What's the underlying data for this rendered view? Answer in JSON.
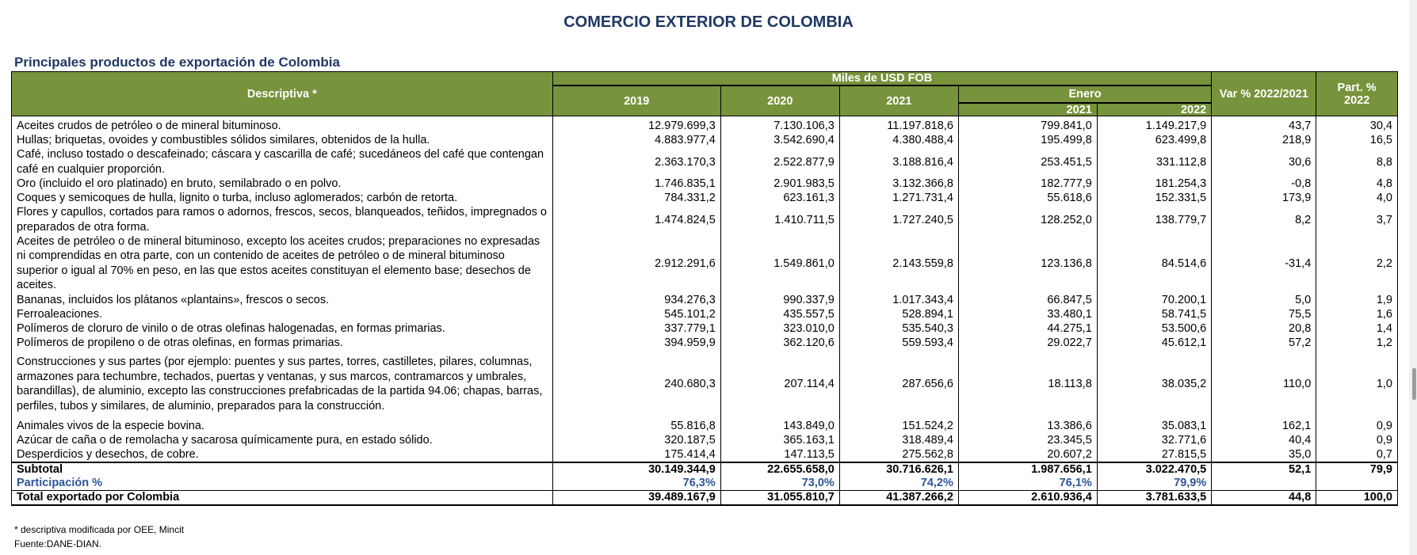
{
  "title": "COMERCIO EXTERIOR DE COLOMBIA",
  "subtitle": "Principales productos de exportación de Colombia",
  "table": {
    "headers": {
      "descriptiva": "Descriptiva *",
      "miles": "Miles de USD FOB",
      "y2019": "2019",
      "y2020": "2020",
      "y2021": "2021",
      "enero": "Enero",
      "e2021": "2021",
      "e2022": "2022",
      "var": "Var % 2022/2021",
      "part_line1": "Part. %",
      "part_line2": "2022"
    },
    "rows": [
      {
        "desc": "Aceites crudos de petróleo o de mineral bituminoso.",
        "y2019": "12.979.699,3",
        "y2020": "7.130.106,3",
        "y2021": "11.197.818,6",
        "e2021": "799.841,0",
        "e2022": "1.149.217,9",
        "var": "43,7",
        "part": "30,4"
      },
      {
        "desc": "Hullas; briquetas, ovoides y combustibles sólidos similares, obtenidos de la hulla.",
        "y2019": "4.883.977,4",
        "y2020": "3.542.690,4",
        "y2021": "4.380.488,4",
        "e2021": "195.499,8",
        "e2022": "623.499,8",
        "var": "218,9",
        "part": "16,5"
      },
      {
        "desc": "Café, incluso tostado o descafeinado; cáscara y cascarilla de café; sucedáneos del café que contengan café en cualquier proporción.",
        "y2019": "2.363.170,3",
        "y2020": "2.522.877,9",
        "y2021": "3.188.816,4",
        "e2021": "253.451,5",
        "e2022": "331.112,8",
        "var": "30,6",
        "part": "8,8"
      },
      {
        "desc": "Oro (incluido el oro platinado) en bruto, semilabrado o en polvo.",
        "y2019": "1.746.835,1",
        "y2020": "2.901.983,5",
        "y2021": "3.132.366,8",
        "e2021": "182.777,9",
        "e2022": "181.254,3",
        "var": "-0,8",
        "part": "4,8"
      },
      {
        "desc": "Coques y semicoques de hulla, lignito o turba, incluso aglomerados; carbón de retorta.",
        "y2019": "784.331,2",
        "y2020": "623.161,3",
        "y2021": "1.271.731,4",
        "e2021": "55.618,6",
        "e2022": "152.331,5",
        "var": "173,9",
        "part": "4,0"
      },
      {
        "desc": "Flores y capullos, cortados para ramos o adornos, frescos, secos, blanqueados, teñidos, impregnados o preparados de otra forma.",
        "y2019": "1.474.824,5",
        "y2020": "1.410.711,5",
        "y2021": "1.727.240,5",
        "e2021": "128.252,0",
        "e2022": "138.779,7",
        "var": "8,2",
        "part": "3,7"
      },
      {
        "desc": "Aceites de petróleo o de mineral bituminoso, excepto los aceites crudos; preparaciones no expresadas ni comprendidas en otra parte, con un contenido de aceites de petróleo o de mineral bituminoso superior o igual al 70% en peso, en las que estos aceites constituyan el elemento base; desechos de aceites.",
        "y2019": "2.912.291,6",
        "y2020": "1.549.861,0",
        "y2021": "2.143.559,8",
        "e2021": "123.136,8",
        "e2022": "84.514,6",
        "var": "-31,4",
        "part": "2,2"
      },
      {
        "desc": "Bananas, incluidos los plátanos «plantains», frescos o secos.",
        "y2019": "934.276,3",
        "y2020": "990.337,9",
        "y2021": "1.017.343,4",
        "e2021": "66.847,5",
        "e2022": "70.200,1",
        "var": "5,0",
        "part": "1,9"
      },
      {
        "desc": "Ferroaleaciones.",
        "y2019": "545.101,2",
        "y2020": "435.557,5",
        "y2021": "528.894,1",
        "e2021": "33.480,1",
        "e2022": "58.741,5",
        "var": "75,5",
        "part": "1,6"
      },
      {
        "desc": "Polímeros de cloruro de vinilo o de otras olefinas halogenadas, en formas primarias.",
        "y2019": "337.779,1",
        "y2020": "323.010,0",
        "y2021": "535.540,3",
        "e2021": "44.275,1",
        "e2022": "53.500,6",
        "var": "20,8",
        "part": "1,4"
      },
      {
        "desc": "Polímeros de propileno o de otras olefinas, en formas primarias.",
        "y2019": "394.959,9",
        "y2020": "362.120,6",
        "y2021": "559.593,4",
        "e2021": "29.022,7",
        "e2022": "45.612,1",
        "var": "57,2",
        "part": "1,2"
      },
      {
        "desc": "Construcciones y sus partes (por ejemplo: puentes y sus partes, torres, castilletes, pilares, columnas, armazones para techumbre, techados, puertas y ventanas, y sus marcos, contramarcos y umbrales, barandillas), de aluminio, excepto las construcciones prefabricadas de la partida 94.06; chapas, barras, perfiles, tubos y similares, de aluminio, preparados para la construcción.",
        "y2019": "240.680,3",
        "y2020": "207.114,4",
        "y2021": "287.656,6",
        "e2021": "18.113,8",
        "e2022": "38.035,2",
        "var": "110,0",
        "part": "1,0"
      },
      {
        "desc": "Animales vivos de la especie bovina.",
        "y2019": "55.816,8",
        "y2020": "143.849,0",
        "y2021": "151.524,2",
        "e2021": "13.386,6",
        "e2022": "35.083,1",
        "var": "162,1",
        "part": "0,9"
      },
      {
        "desc": "Azúcar de caña o de remolacha y sacarosa químicamente pura, en estado sólido.",
        "y2019": "320.187,5",
        "y2020": "365.163,1",
        "y2021": "318.489,4",
        "e2021": "23.345,5",
        "e2022": "32.771,6",
        "var": "40,4",
        "part": "0,9"
      },
      {
        "desc": "Desperdicios y desechos, de cobre.",
        "y2019": "175.414,4",
        "y2020": "147.113,5",
        "y2021": "275.562,8",
        "e2021": "20.607,2",
        "e2022": "27.815,5",
        "var": "35,0",
        "part": "0,7"
      }
    ],
    "subtotal": {
      "label": "Subtotal",
      "y2019": "30.149.344,9",
      "y2020": "22.655.658,0",
      "y2021": "30.716.626,1",
      "e2021": "1.987.656,1",
      "e2022": "3.022.470,5",
      "var": "52,1",
      "part": "79,9"
    },
    "participacion": {
      "label": "Participación %",
      "y2019": "76,3%",
      "y2020": "73,0%",
      "y2021": "74,2%",
      "e2021": "76,1%",
      "e2022": "79,9%"
    },
    "total": {
      "label": "Total exportado por Colombia",
      "y2019": "39.489.167,9",
      "y2020": "31.055.810,7",
      "y2021": "41.387.266,2",
      "e2021": "2.610.936,4",
      "e2022": "3.781.633,5",
      "var": "44,8",
      "part": "100,0"
    }
  },
  "footnote": "* descriptiva modificada por OEE, Mincit",
  "source": "Fuente:DANE-DIAN."
}
